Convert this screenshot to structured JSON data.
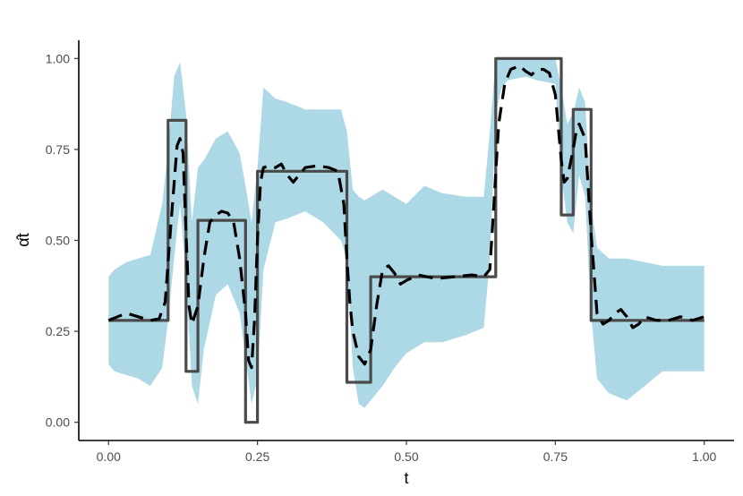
{
  "chart_data": {
    "type": "line",
    "title": "",
    "xlabel": "t",
    "ylabel": "α̂t",
    "xlim": [
      -0.05,
      1.05
    ],
    "ylim": [
      -0.05,
      1.05
    ],
    "x_ticks": [
      0,
      0.25,
      0.5,
      0.75,
      1
    ],
    "x_tick_labels": [
      "0.00",
      "0.25",
      "0.50",
      "0.75",
      "1.00"
    ],
    "y_ticks": [
      0,
      0.25,
      0.5,
      0.75,
      1
    ],
    "y_tick_labels": [
      "0.00",
      "0.25",
      "0.50",
      "0.75",
      "1.00"
    ],
    "grid": false,
    "legend": "none",
    "colors": {
      "band": "#add8e6",
      "true": "#4a4a4a",
      "estimate": "#000000",
      "axis": "#000000",
      "tick_text": "#4d4d4d"
    },
    "series": [
      {
        "kind": "band",
        "x": [
          0.0,
          0.01,
          0.03,
          0.05,
          0.07,
          0.09,
          0.1,
          0.11,
          0.12,
          0.13,
          0.14,
          0.15,
          0.16,
          0.18,
          0.2,
          0.22,
          0.23,
          0.24,
          0.25,
          0.26,
          0.28,
          0.3,
          0.33,
          0.36,
          0.39,
          0.4,
          0.41,
          0.42,
          0.43,
          0.44,
          0.46,
          0.48,
          0.5,
          0.53,
          0.56,
          0.6,
          0.63,
          0.64,
          0.65,
          0.66,
          0.67,
          0.7,
          0.72,
          0.75,
          0.76,
          0.77,
          0.78,
          0.79,
          0.8,
          0.81,
          0.82,
          0.84,
          0.87,
          0.9,
          0.93,
          0.96,
          1.0
        ],
        "lower": [
          0.16,
          0.14,
          0.13,
          0.12,
          0.1,
          0.15,
          0.28,
          0.45,
          0.6,
          0.4,
          0.1,
          0.05,
          0.2,
          0.35,
          0.38,
          0.3,
          0.18,
          0.05,
          0.12,
          0.42,
          0.55,
          0.56,
          0.58,
          0.55,
          0.5,
          0.45,
          0.15,
          0.05,
          0.04,
          0.06,
          0.1,
          0.15,
          0.19,
          0.22,
          0.22,
          0.24,
          0.26,
          0.45,
          0.85,
          0.92,
          0.94,
          0.95,
          0.94,
          0.93,
          0.68,
          0.55,
          0.52,
          0.68,
          0.62,
          0.3,
          0.12,
          0.08,
          0.06,
          0.1,
          0.14,
          0.14,
          0.14
        ],
        "upper": [
          0.4,
          0.42,
          0.44,
          0.45,
          0.46,
          0.6,
          0.75,
          0.95,
          0.99,
          0.85,
          0.55,
          0.7,
          0.72,
          0.78,
          0.8,
          0.74,
          0.65,
          0.55,
          0.7,
          0.92,
          0.89,
          0.88,
          0.86,
          0.86,
          0.86,
          0.8,
          0.64,
          0.62,
          0.61,
          0.62,
          0.64,
          0.62,
          0.6,
          0.65,
          0.63,
          0.62,
          0.62,
          0.8,
          1.0,
          1.0,
          1.0,
          1.0,
          1.0,
          1.0,
          0.92,
          0.82,
          0.85,
          0.92,
          0.88,
          0.6,
          0.48,
          0.45,
          0.45,
          0.44,
          0.43,
          0.43,
          0.43
        ]
      },
      {
        "kind": "step",
        "x": [
          0.0,
          0.1,
          0.1,
          0.13,
          0.13,
          0.15,
          0.15,
          0.23,
          0.23,
          0.25,
          0.25,
          0.4,
          0.4,
          0.44,
          0.44,
          0.65,
          0.65,
          0.76,
          0.76,
          0.78,
          0.78,
          0.81,
          0.81,
          1.0
        ],
        "y": [
          0.28,
          0.28,
          0.83,
          0.83,
          0.14,
          0.14,
          0.555,
          0.555,
          0.0,
          0.0,
          0.69,
          0.69,
          0.11,
          0.11,
          0.4,
          0.4,
          1.0,
          1.0,
          0.57,
          0.57,
          0.86,
          0.86,
          0.28,
          0.28
        ]
      },
      {
        "kind": "dashed",
        "x": [
          0.0,
          0.015,
          0.03,
          0.05,
          0.07,
          0.085,
          0.095,
          0.105,
          0.115,
          0.12,
          0.125,
          0.13,
          0.135,
          0.14,
          0.15,
          0.16,
          0.17,
          0.18,
          0.19,
          0.2,
          0.21,
          0.22,
          0.23,
          0.235,
          0.24,
          0.245,
          0.25,
          0.255,
          0.26,
          0.27,
          0.28,
          0.29,
          0.3,
          0.31,
          0.32,
          0.33,
          0.35,
          0.37,
          0.385,
          0.395,
          0.4,
          0.405,
          0.41,
          0.42,
          0.43,
          0.44,
          0.45,
          0.46,
          0.47,
          0.48,
          0.49,
          0.5,
          0.52,
          0.55,
          0.58,
          0.61,
          0.63,
          0.64,
          0.645,
          0.655,
          0.665,
          0.675,
          0.69,
          0.7,
          0.71,
          0.72,
          0.73,
          0.74,
          0.75,
          0.76,
          0.765,
          0.77,
          0.78,
          0.785,
          0.79,
          0.8,
          0.81,
          0.82,
          0.83,
          0.84,
          0.85,
          0.86,
          0.87,
          0.88,
          0.89,
          0.9,
          0.92,
          0.94,
          0.96,
          0.98,
          1.0
        ],
        "y": [
          0.28,
          0.29,
          0.3,
          0.29,
          0.28,
          0.285,
          0.33,
          0.55,
          0.76,
          0.78,
          0.74,
          0.52,
          0.32,
          0.27,
          0.32,
          0.45,
          0.55,
          0.57,
          0.58,
          0.575,
          0.55,
          0.45,
          0.3,
          0.17,
          0.15,
          0.28,
          0.5,
          0.66,
          0.7,
          0.705,
          0.7,
          0.71,
          0.68,
          0.66,
          0.68,
          0.7,
          0.705,
          0.7,
          0.69,
          0.6,
          0.45,
          0.33,
          0.25,
          0.18,
          0.16,
          0.2,
          0.32,
          0.42,
          0.43,
          0.41,
          0.38,
          0.39,
          0.405,
          0.395,
          0.4,
          0.405,
          0.4,
          0.42,
          0.55,
          0.82,
          0.93,
          0.97,
          0.98,
          0.965,
          0.955,
          0.97,
          0.97,
          0.96,
          0.9,
          0.72,
          0.66,
          0.67,
          0.75,
          0.8,
          0.82,
          0.78,
          0.52,
          0.3,
          0.27,
          0.28,
          0.3,
          0.31,
          0.29,
          0.26,
          0.27,
          0.29,
          0.28,
          0.28,
          0.29,
          0.28,
          0.29
        ]
      }
    ]
  }
}
